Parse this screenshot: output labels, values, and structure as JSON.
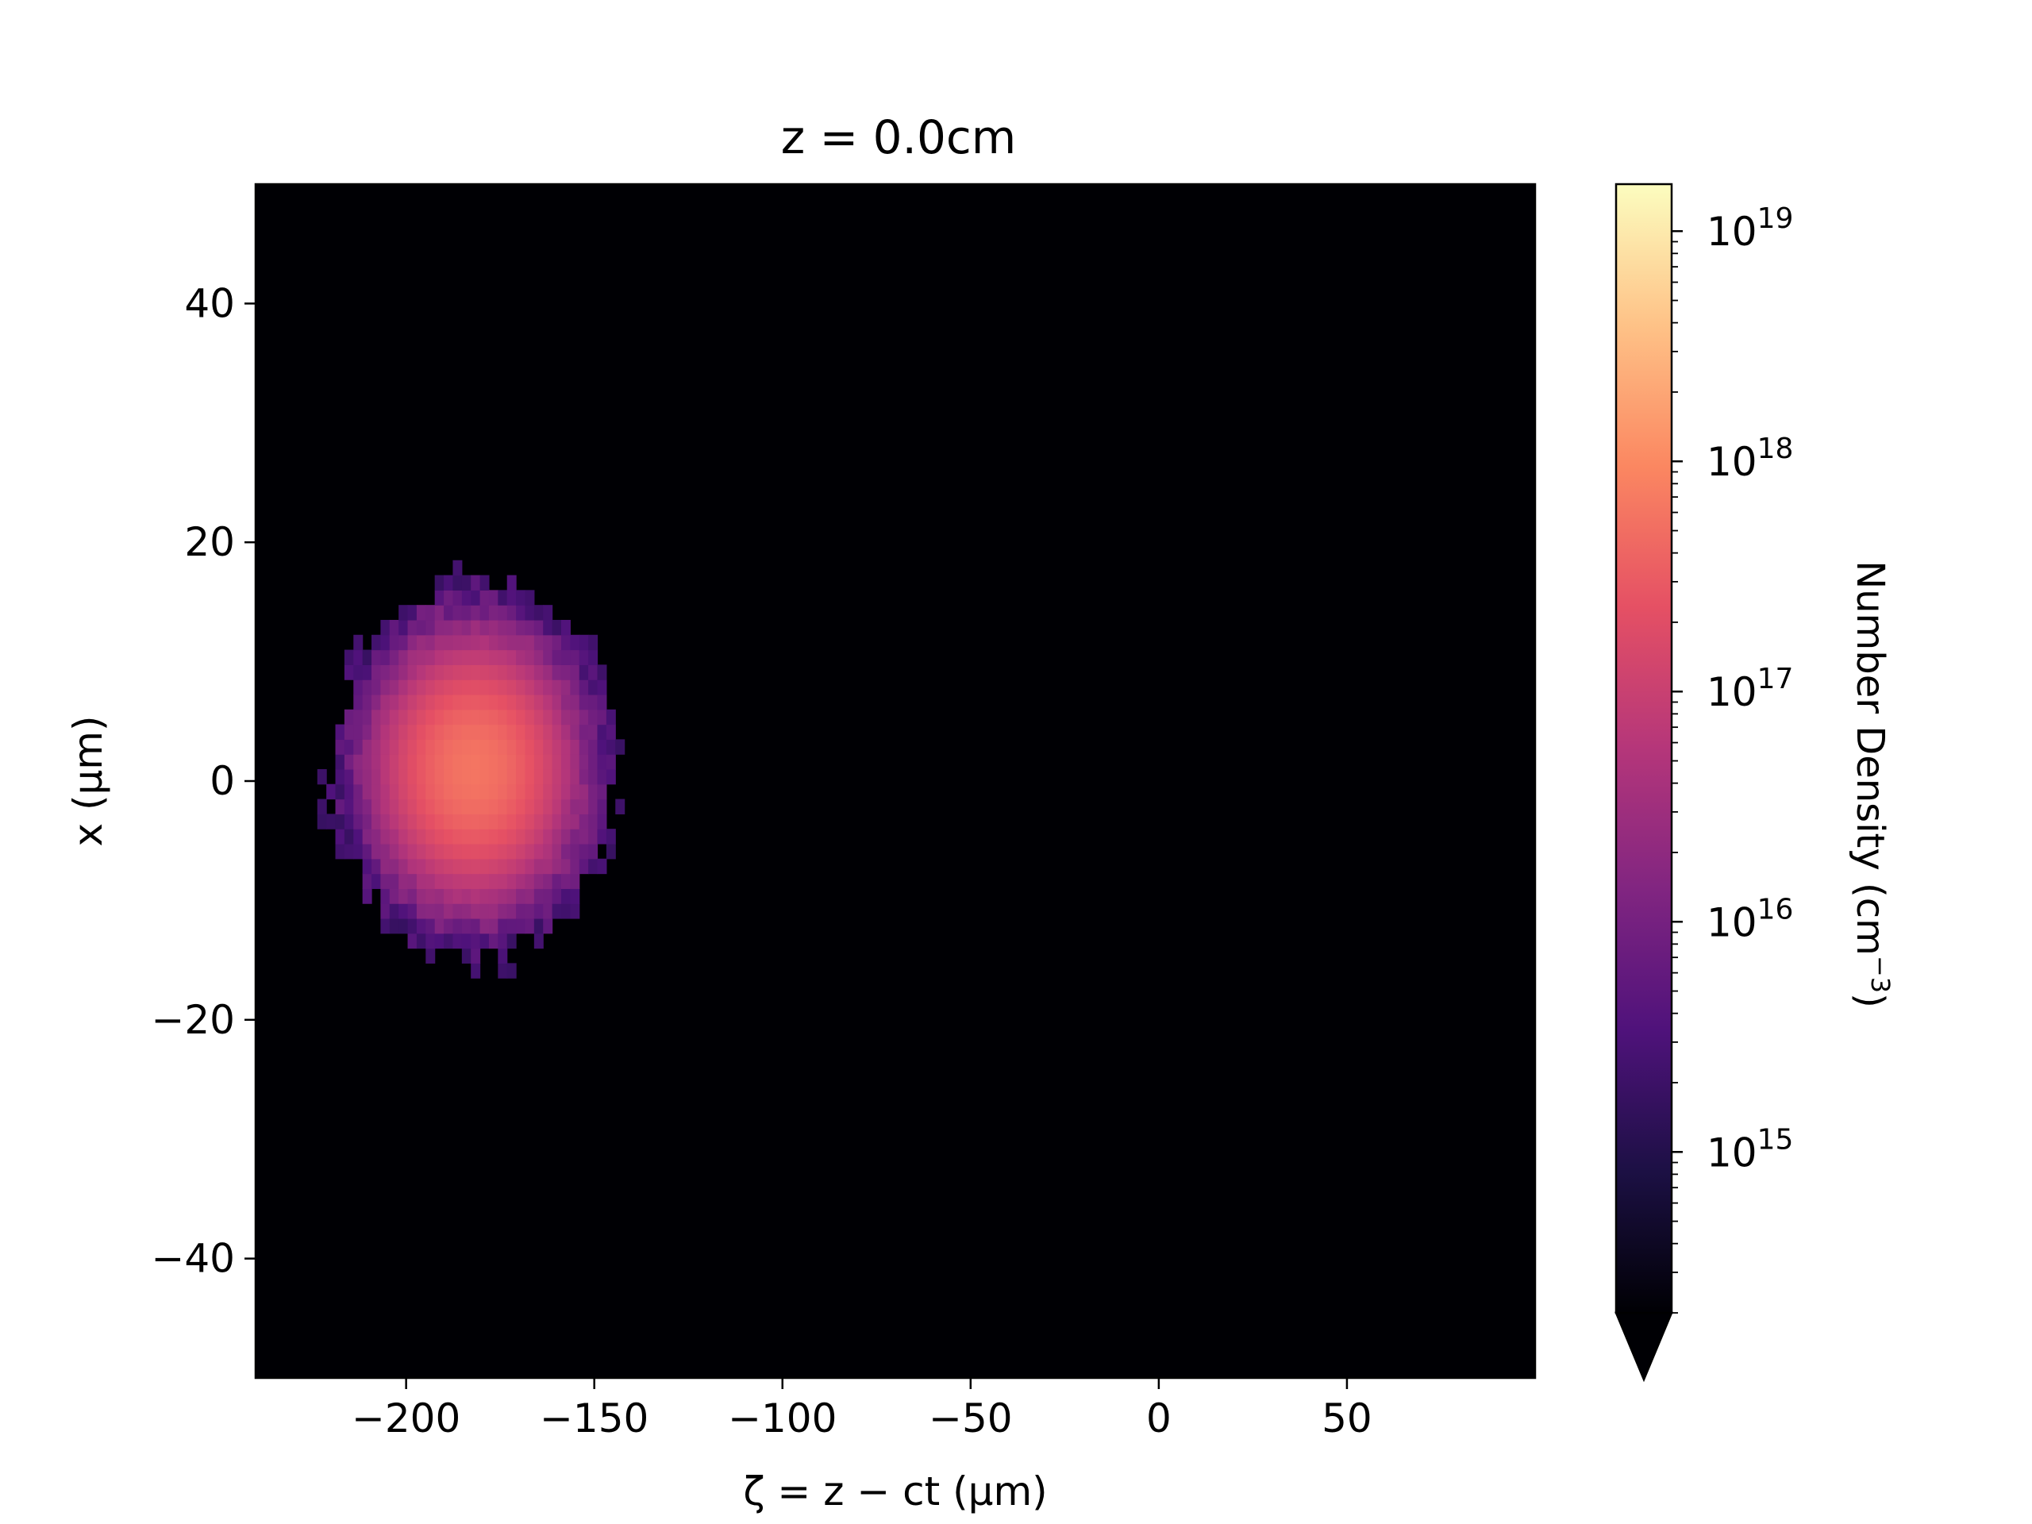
{
  "chart_data": {
    "type": "heatmap",
    "title": "z = 0.0cm",
    "xlabel": "ζ = z − ct (μm)",
    "ylabel": "x (μm)",
    "xlim": [
      -240,
      100
    ],
    "ylim": [
      -50,
      50
    ],
    "xticks": [
      -200,
      -150,
      -100,
      -50,
      0,
      50
    ],
    "xtick_labels": [
      "−200",
      "−150",
      "−100",
      "−50",
      "0",
      "50"
    ],
    "yticks": [
      -40,
      -20,
      0,
      20,
      40
    ],
    "ytick_labels": [
      "−40",
      "−20",
      "0",
      "20",
      "40"
    ],
    "colormap": "magma",
    "colorbar": {
      "label": "Number Density (cm",
      "label_superscript": "−3",
      "label_tail": ")",
      "scale": "log",
      "range": [
        200000000000000.0,
        1.6e+19
      ],
      "extend": "min",
      "ticks": [
        {
          "value": 1000000000000000.0,
          "base": "10",
          "exp": "15"
        },
        {
          "value": 1e+16,
          "base": "10",
          "exp": "16"
        },
        {
          "value": 1e+17,
          "base": "10",
          "exp": "17"
        },
        {
          "value": 1e+18,
          "base": "10",
          "exp": "18"
        },
        {
          "value": 1e+19,
          "base": "10",
          "exp": "19"
        }
      ]
    },
    "background_value": "below range (≈0)",
    "bunch": {
      "center_zeta_um": -182,
      "center_x_um": 1,
      "radius_zeta_um": 38,
      "radius_x_um": 16,
      "peak_density_cm3": 6e+17
    },
    "grid": false
  }
}
